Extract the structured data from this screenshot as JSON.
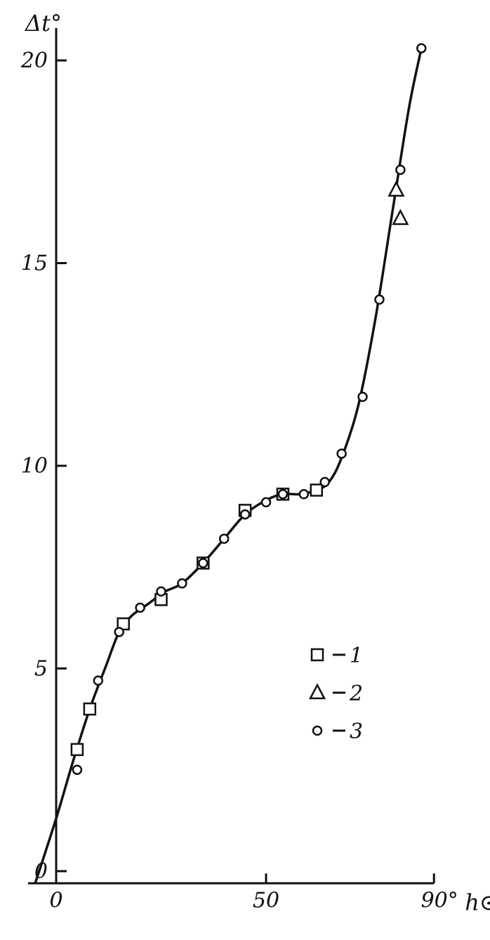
{
  "chart_data": {
    "type": "scatter",
    "title": "",
    "ylabel": "Δt°",
    "xlabel": "h⊙",
    "x_unit_prefix": "90°",
    "xlim": [
      -5,
      93
    ],
    "ylim": [
      -0.3,
      20.8
    ],
    "x_ticks": [
      0,
      50,
      90
    ],
    "x_tick_labels": [
      "0",
      "50",
      "90°"
    ],
    "y_ticks": [
      0,
      5,
      10,
      15,
      20
    ],
    "y_tick_labels": [
      "0",
      "5",
      "10",
      "15",
      "20"
    ],
    "grid": false,
    "legend_position": "right-center",
    "series": [
      {
        "name": "1",
        "marker": "square",
        "x": [
          5,
          8,
          16,
          25,
          35,
          45,
          54,
          62
        ],
        "y": [
          3.0,
          4.0,
          6.1,
          6.7,
          7.6,
          8.9,
          9.3,
          9.4
        ]
      },
      {
        "name": "2",
        "marker": "triangle",
        "x": [
          81,
          82
        ],
        "y": [
          16.8,
          16.1
        ]
      },
      {
        "name": "3",
        "marker": "circle",
        "x": [
          5,
          10,
          15,
          20,
          25,
          30,
          35,
          40,
          45,
          50,
          54,
          59,
          64,
          68,
          73,
          77,
          82,
          87
        ],
        "y": [
          2.5,
          4.7,
          5.9,
          6.5,
          6.9,
          7.1,
          7.6,
          8.2,
          8.8,
          9.1,
          9.3,
          9.3,
          9.6,
          10.3,
          11.7,
          14.1,
          17.3,
          20.3
        ]
      }
    ],
    "fitted_curve": {
      "x": [
        -5,
        0,
        4,
        8,
        12,
        15,
        18,
        22,
        26,
        30,
        35,
        40,
        45,
        50,
        54,
        58,
        62,
        65,
        68,
        72,
        76,
        80,
        84,
        87
      ],
      "y": [
        -0.3,
        1.3,
        2.7,
        4.0,
        5.1,
        5.9,
        6.3,
        6.6,
        6.9,
        7.1,
        7.6,
        8.2,
        8.8,
        9.15,
        9.3,
        9.3,
        9.4,
        9.6,
        10.2,
        11.5,
        13.6,
        16.2,
        18.8,
        20.3
      ]
    }
  }
}
